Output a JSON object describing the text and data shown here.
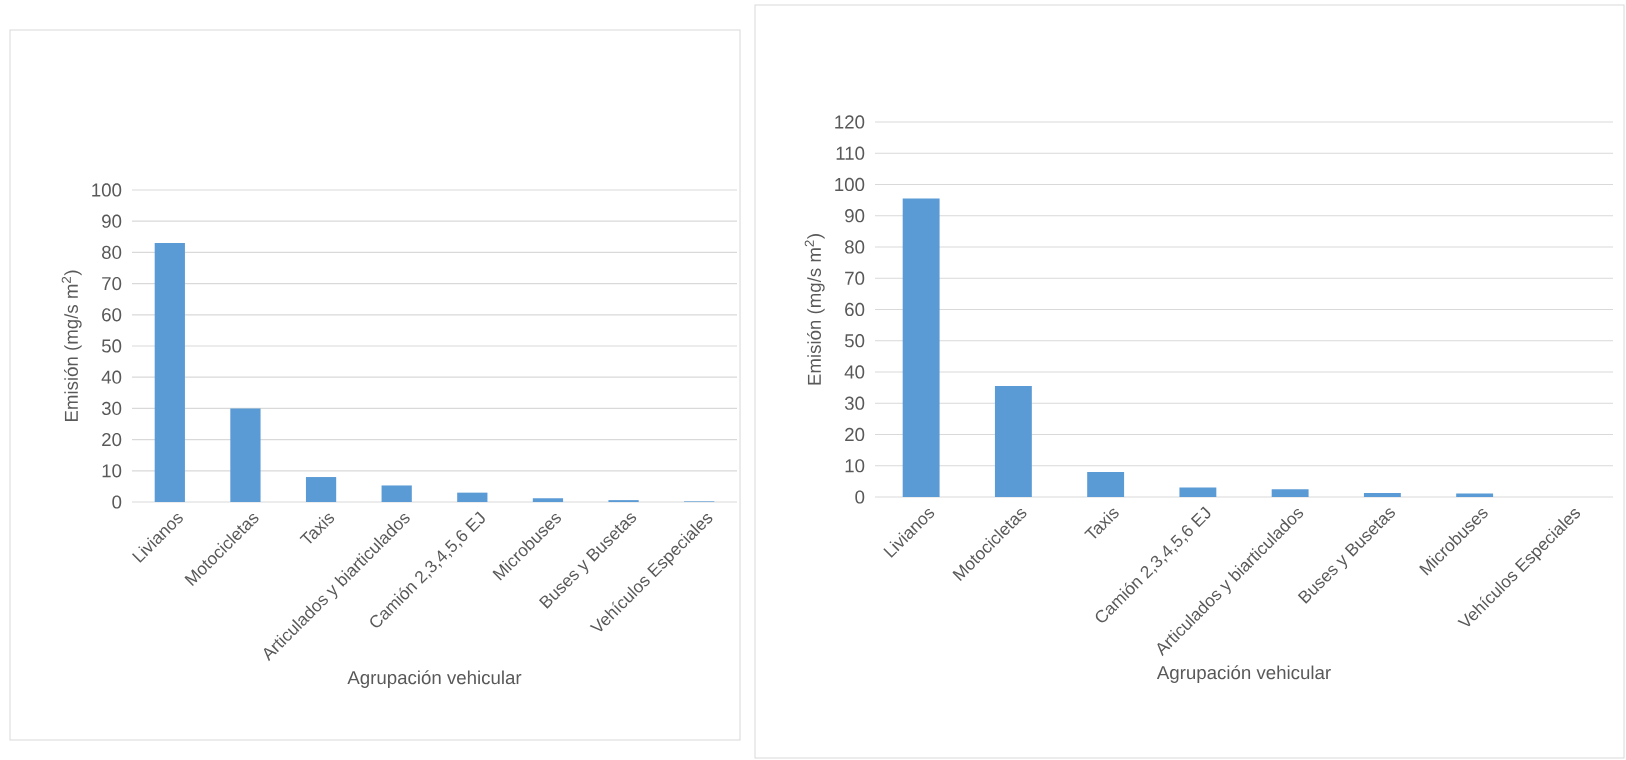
{
  "chart_data": [
    {
      "type": "bar",
      "xlabel": "Agrupación vehicular",
      "ylabel": "Emisión (mg/s m$^{2}$)",
      "categories": [
        "Livianos",
        "Motocicletas",
        "Taxis",
        "Articulados y biarticulados",
        "Camión 2,3,4,5,6 EJ",
        "Microbuses",
        "Buses y Busetas",
        "Vehículos Especiales"
      ],
      "values": [
        83,
        30,
        8,
        5.3,
        3,
        1.2,
        0.6,
        0.2
      ],
      "color": "#5b9bd5",
      "ylim": [
        0,
        100
      ],
      "yticks": [
        0,
        10,
        20,
        30,
        40,
        50,
        60,
        70,
        80,
        90,
        100
      ],
      "grid": "y"
    },
    {
      "type": "bar",
      "xlabel": "Agrupación  vehicular",
      "ylabel": "Emisión (mg/s m$^{2}$)",
      "categories": [
        "Livianos",
        "Motocicletas",
        "Taxis",
        "Camión 2,3,4,5,6 EJ",
        "Articulados y biarticulados",
        "Buses y Busetas",
        "Microbuses",
        "Vehículos Especiales"
      ],
      "values": [
        95.5,
        35.5,
        8,
        3,
        2.5,
        1.3,
        1.1,
        null
      ],
      "color": "#5b9bd5",
      "ylim": [
        0,
        120
      ],
      "yticks": [
        0,
        10,
        20,
        30,
        40,
        50,
        60,
        70,
        80,
        90,
        100,
        110,
        120
      ],
      "grid": "y"
    }
  ]
}
